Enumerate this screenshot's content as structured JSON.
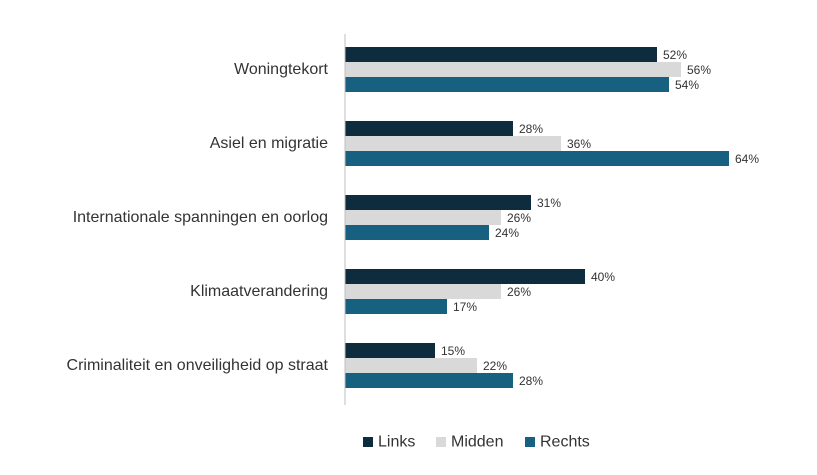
{
  "chart_data": {
    "type": "bar",
    "orientation": "horizontal",
    "categories": [
      "Woningtekort",
      "Asiel en migratie",
      "Internationale spanningen en oorlog",
      "Klimaatverandering",
      "Criminaliteit en onveiligheid op straat"
    ],
    "series": [
      {
        "name": "Links",
        "color": "#0d2c3e",
        "values": [
          52,
          28,
          31,
          40,
          15
        ],
        "labels": [
          "52%",
          "28%",
          "31%",
          "40%",
          "15%"
        ]
      },
      {
        "name": "Midden",
        "color": "#d9d9d9",
        "values": [
          56,
          36,
          26,
          26,
          22
        ],
        "labels": [
          "56%",
          "36%",
          "26%",
          "26%",
          "22%"
        ]
      },
      {
        "name": "Rechts",
        "color": "#17607f",
        "values": [
          54,
          64,
          24,
          17,
          28
        ],
        "labels": [
          "54%",
          "64%",
          "24%",
          "17%",
          "28%"
        ]
      }
    ],
    "xlim": [
      0,
      100
    ],
    "value_unit": "%",
    "grid": false,
    "legend": "bottom-center"
  }
}
